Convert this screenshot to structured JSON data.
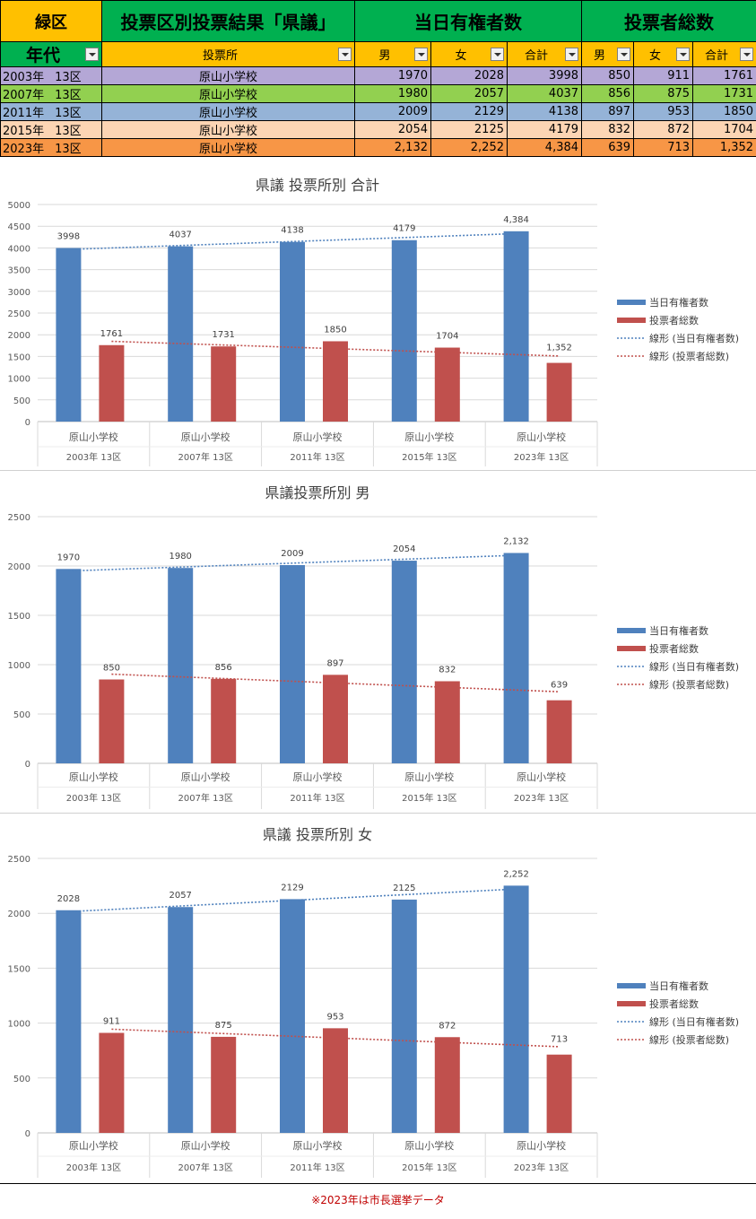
{
  "sheet": {
    "ward": "緑区",
    "title": "投票区別投票結果「県議」",
    "eligible_header": "当日有権者数",
    "voters_header": "投票者総数",
    "age_header": "年代",
    "place_header": "投票所",
    "male": "男",
    "female": "女",
    "total": "合計",
    "rows": [
      {
        "year": "2003年",
        "district": "13区",
        "place": "原山小学校",
        "em": "1970",
        "ef": "2028",
        "et": "3998",
        "vm": "850",
        "vf": "911",
        "vt": "1761",
        "color": "#b4a7d6"
      },
      {
        "year": "2007年",
        "district": "13区",
        "place": "原山小学校",
        "em": "1980",
        "ef": "2057",
        "et": "4037",
        "vm": "856",
        "vf": "875",
        "vt": "1731",
        "color": "#92d050"
      },
      {
        "year": "2011年",
        "district": "13区",
        "place": "原山小学校",
        "em": "2009",
        "ef": "2129",
        "et": "4138",
        "vm": "897",
        "vf": "953",
        "vt": "1850",
        "color": "#95b3d7"
      },
      {
        "year": "2015年",
        "district": "13区",
        "place": "原山小学校",
        "em": "2054",
        "ef": "2125",
        "et": "4179",
        "vm": "832",
        "vf": "872",
        "vt": "1704",
        "color": "#fcd5b4"
      },
      {
        "year": "2023年",
        "district": "13区",
        "place": "原山小学校",
        "em": "2,132",
        "ef": "2,252",
        "et": "4,384",
        "vm": "639",
        "vf": "713",
        "vt": "1,352",
        "color": "#f79646"
      }
    ]
  },
  "note": "※2023年は市長選挙データ",
  "colors": {
    "eligible": "#4f81bd",
    "voters": "#c0504d",
    "grid": "#d9d9d9",
    "axis_text": "#595959"
  },
  "chart_data": [
    {
      "type": "bar",
      "title": "県議 投票所別 合計",
      "categories": [
        "原山小学校",
        "原山小学校",
        "原山小学校",
        "原山小学校",
        "原山小学校"
      ],
      "subcategories": [
        "2003年 13区",
        "2007年 13区",
        "2011年 13区",
        "2015年 13区",
        "2023年 13区"
      ],
      "ylim": [
        0,
        5000
      ],
      "yticks": [
        0,
        500,
        1000,
        1500,
        2000,
        2500,
        3000,
        3500,
        4000,
        4500,
        5000
      ],
      "series": [
        {
          "name": "当日有権者数",
          "values": [
            3998,
            4037,
            4138,
            4179,
            4384
          ],
          "labels": [
            "3998",
            "4037",
            "4138",
            "4179",
            "4,384"
          ]
        },
        {
          "name": "投票者総数",
          "values": [
            1761,
            1731,
            1850,
            1704,
            1352
          ],
          "labels": [
            "1761",
            "1731",
            "1850",
            "1704",
            "1,352"
          ]
        }
      ],
      "trendlines": [
        {
          "name": "線形 (当日有権者数)",
          "series": 0
        },
        {
          "name": "線形 (投票者総数)",
          "series": 1
        }
      ],
      "legend": "right"
    },
    {
      "type": "bar",
      "title": "県議投票所別 男",
      "categories": [
        "原山小学校",
        "原山小学校",
        "原山小学校",
        "原山小学校",
        "原山小学校"
      ],
      "subcategories": [
        "2003年 13区",
        "2007年 13区",
        "2011年 13区",
        "2015年 13区",
        "2023年 13区"
      ],
      "ylim": [
        0,
        2500
      ],
      "yticks": [
        0,
        500,
        1000,
        1500,
        2000,
        2500
      ],
      "series": [
        {
          "name": "当日有権者数",
          "values": [
            1970,
            1980,
            2009,
            2054,
            2132
          ],
          "labels": [
            "1970",
            "1980",
            "2009",
            "2054",
            "2,132"
          ]
        },
        {
          "name": "投票者総数",
          "values": [
            850,
            856,
            897,
            832,
            639
          ],
          "labels": [
            "850",
            "856",
            "897",
            "832",
            "639"
          ]
        }
      ],
      "trendlines": [
        {
          "name": "線形 (当日有権者数)",
          "series": 0
        },
        {
          "name": "線形 (投票者総数)",
          "series": 1
        }
      ],
      "legend": "right"
    },
    {
      "type": "bar",
      "title": "県議 投票所別 女",
      "categories": [
        "原山小学校",
        "原山小学校",
        "原山小学校",
        "原山小学校",
        "原山小学校"
      ],
      "subcategories": [
        "2003年 13区",
        "2007年 13区",
        "2011年 13区",
        "2015年 13区",
        "2023年 13区"
      ],
      "ylim": [
        0,
        2500
      ],
      "yticks": [
        0,
        500,
        1000,
        1500,
        2000,
        2500
      ],
      "series": [
        {
          "name": "当日有権者数",
          "values": [
            2028,
            2057,
            2129,
            2125,
            2252
          ],
          "labels": [
            "2028",
            "2057",
            "2129",
            "2125",
            "2,252"
          ]
        },
        {
          "name": "投票者総数",
          "values": [
            911,
            875,
            953,
            872,
            713
          ],
          "labels": [
            "911",
            "875",
            "953",
            "872",
            "713"
          ]
        }
      ],
      "trendlines": [
        {
          "name": "線形 (当日有権者数)",
          "series": 0
        },
        {
          "name": "線形 (投票者総数)",
          "series": 1
        }
      ],
      "legend": "right"
    }
  ]
}
